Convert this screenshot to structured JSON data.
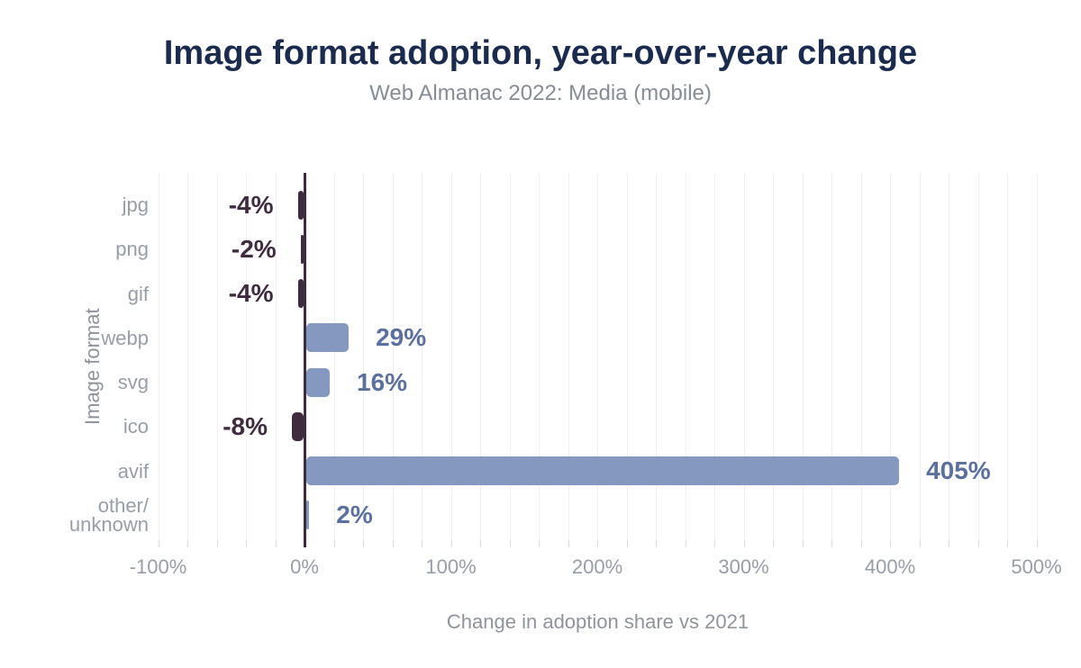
{
  "header": {
    "title": "Image format adoption, year-over-year change",
    "subtitle": "Web Almanac 2022: Media (mobile)"
  },
  "chart_data": {
    "type": "bar",
    "orientation": "horizontal",
    "title": "Image format adoption, year-over-year change",
    "subtitle": "Web Almanac 2022: Media (mobile)",
    "xlabel": "Change in adoption share vs 2021",
    "ylabel": "Image format",
    "categories": [
      "jpg",
      "png",
      "gif",
      "webp",
      "svg",
      "ico",
      "avif",
      "other/unknown"
    ],
    "values": [
      -4,
      -2,
      -4,
      29,
      16,
      -8,
      405,
      2
    ],
    "data_labels": [
      "-4%",
      "-2%",
      "-4%",
      "29%",
      "16%",
      "-8%",
      "405%",
      "2%"
    ],
    "xlim": [
      -100,
      500
    ],
    "xtick_labels": [
      "-100%",
      "0%",
      "100%",
      "200%",
      "300%",
      "400%",
      "500%"
    ],
    "xtick_values": [
      -100,
      0,
      100,
      200,
      300,
      400,
      500
    ],
    "gridline_step_pct": 20,
    "grid": "vertical",
    "legend": "none",
    "colors": {
      "title": "#1b2b4e",
      "subtitle": "#878d94",
      "axis_text": "#999ea6",
      "positive_bar": "#8598c0",
      "positive_label": "#5c709e",
      "negative_bar": "#3e2b3e",
      "negative_label": "#3e2b3e",
      "gridline": "#eef0f3",
      "tick": "#d9dce1",
      "zero_line": "#3e2b3e",
      "background": "#ffffff"
    }
  }
}
